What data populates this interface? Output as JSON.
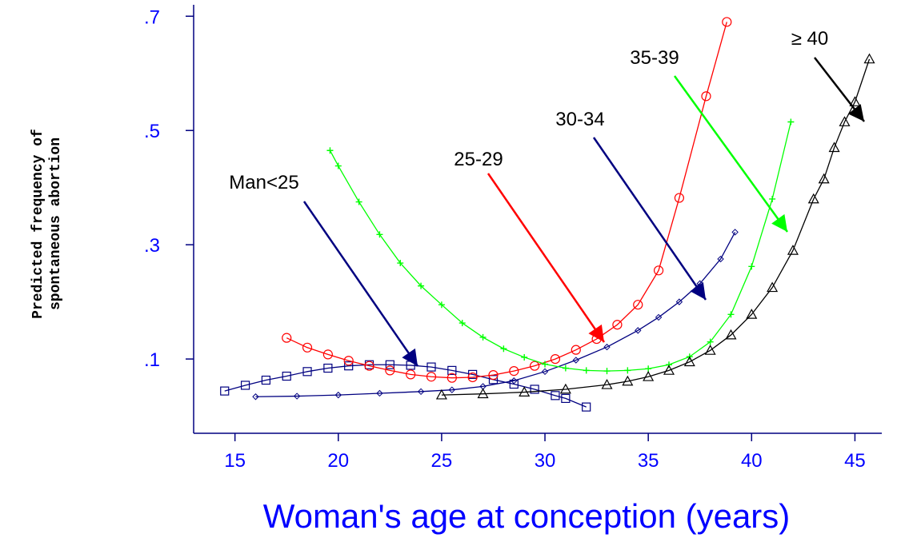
{
  "chart_data": {
    "type": "line",
    "title": "",
    "xlabel": "Woman's age at conception (years)",
    "ylabel_lines": [
      "Predicted frequency of",
      "spontaneous abortion"
    ],
    "xlim": [
      13,
      46.3
    ],
    "ylim": [
      -0.03,
      0.72
    ],
    "x_ticks": [
      15,
      20,
      25,
      30,
      35,
      40,
      45
    ],
    "x_tick_labels": [
      "15",
      "20",
      "25",
      "30",
      "35",
      "40",
      "45"
    ],
    "y_ticks": [
      0.1,
      0.3,
      0.5,
      0.7
    ],
    "y_tick_labels": [
      ".1",
      ".3",
      ".5",
      ".7"
    ],
    "grid": false,
    "series": [
      {
        "name": "Man<25",
        "color": "#000080",
        "marker": "square",
        "x": [
          14.5,
          15.5,
          16.5,
          17.5,
          18.5,
          19.5,
          20.5,
          21.5,
          22.5,
          23.5,
          24.5,
          25.5,
          26.5,
          27.5,
          28.5,
          29.5,
          30.5,
          31.0,
          32.0
        ],
        "y": [
          0.044,
          0.054,
          0.063,
          0.07,
          0.078,
          0.084,
          0.088,
          0.09,
          0.09,
          0.089,
          0.086,
          0.08,
          0.073,
          0.064,
          0.056,
          0.047,
          0.036,
          0.031,
          0.016
        ],
        "label_position": "left"
      },
      {
        "name": "25-29",
        "color": "#ff0000",
        "marker": "circle",
        "x": [
          17.5,
          18.5,
          19.5,
          20.5,
          21.5,
          22.5,
          23.5,
          24.5,
          25.5,
          26.5,
          27.5,
          28.5,
          29.5,
          30.5,
          31.5,
          32.5,
          33.5,
          34.5,
          35.5,
          36.5,
          37.8,
          38.8
        ],
        "y": [
          0.137,
          0.12,
          0.108,
          0.097,
          0.088,
          0.08,
          0.073,
          0.069,
          0.067,
          0.068,
          0.072,
          0.079,
          0.088,
          0.1,
          0.116,
          0.135,
          0.16,
          0.195,
          0.255,
          0.382,
          0.56,
          0.69
        ],
        "label_position": "center"
      },
      {
        "name": "30-34",
        "color": "#000080",
        "marker": "diamond",
        "x": [
          16.0,
          18.0,
          20.0,
          22.0,
          24.0,
          25.5,
          27.0,
          28.5,
          30.0,
          31.5,
          33.0,
          34.5,
          35.5,
          36.5,
          37.5,
          38.5,
          39.2
        ],
        "y": [
          0.034,
          0.035,
          0.037,
          0.04,
          0.043,
          0.046,
          0.052,
          0.062,
          0.078,
          0.098,
          0.121,
          0.15,
          0.173,
          0.2,
          0.232,
          0.275,
          0.322
        ],
        "label_position": "center"
      },
      {
        "name": "35-39",
        "color": "#00ff00",
        "marker": "plus",
        "x": [
          19.6,
          20.0,
          21.0,
          22.0,
          23.0,
          24.0,
          25.0,
          26.0,
          27.0,
          28.0,
          29.0,
          30.0,
          31.0,
          32.0,
          33.0,
          34.0,
          35.0,
          36.0,
          37.0,
          38.0,
          39.0,
          40.0,
          41.0,
          41.9
        ],
        "y": [
          0.465,
          0.438,
          0.375,
          0.318,
          0.268,
          0.228,
          0.195,
          0.163,
          0.138,
          0.118,
          0.103,
          0.091,
          0.084,
          0.08,
          0.079,
          0.08,
          0.083,
          0.09,
          0.104,
          0.13,
          0.178,
          0.262,
          0.38,
          0.515
        ],
        "label_position": "center"
      },
      {
        "name": "≥ 40",
        "color": "#000000",
        "marker": "triangle",
        "x": [
          25.0,
          27.0,
          29.0,
          31.0,
          33.0,
          34.0,
          35.0,
          36.0,
          37.0,
          38.0,
          39.0,
          40.0,
          41.0,
          42.0,
          43.0,
          43.5,
          44.0,
          44.5,
          45.0,
          45.7
        ],
        "y": [
          0.037,
          0.039,
          0.042,
          0.047,
          0.055,
          0.061,
          0.069,
          0.08,
          0.095,
          0.115,
          0.142,
          0.178,
          0.225,
          0.29,
          0.38,
          0.415,
          0.47,
          0.515,
          0.55,
          0.625
        ],
        "label_position": "right"
      }
    ],
    "annotations": [
      {
        "text": "Man<25",
        "color": "#000080"
      },
      {
        "text": "25-29",
        "color": "#ff0000"
      },
      {
        "text": "30-34",
        "color": "#000080"
      },
      {
        "text": "35-39",
        "color": "#00ff00"
      },
      {
        "text": "≥ 40",
        "color": "#000000"
      }
    ]
  }
}
